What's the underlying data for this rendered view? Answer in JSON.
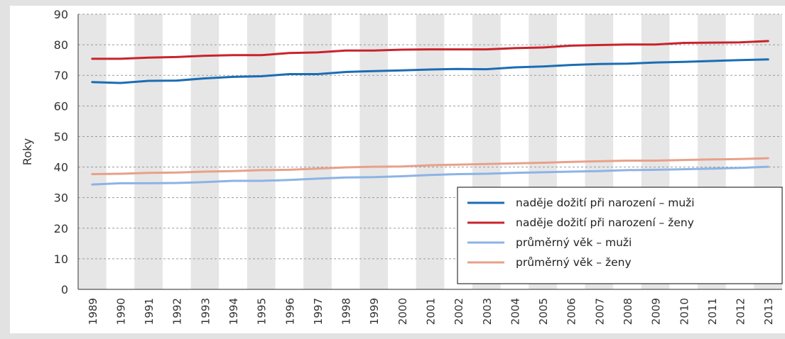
{
  "chart_data": {
    "type": "line",
    "title": "",
    "xlabel": "",
    "ylabel": "Roky",
    "ylim": [
      0,
      90
    ],
    "yticks": [
      0,
      10,
      20,
      30,
      40,
      50,
      60,
      70,
      80,
      90
    ],
    "grid": true,
    "legend_position": "bottom-right",
    "categories": [
      "1989",
      "1990",
      "1991",
      "1992",
      "1993",
      "1994",
      "1995",
      "1996",
      "1997",
      "1998",
      "1999",
      "2000",
      "2001",
      "2002",
      "2003",
      "2004",
      "2005",
      "2006",
      "2007",
      "2008",
      "2009",
      "2010",
      "2011",
      "2012",
      "2013"
    ],
    "series": [
      {
        "name": "naděje dožití při narození – muži",
        "color": "#1a6db4",
        "values": [
          67.8,
          67.5,
          68.2,
          68.3,
          69.0,
          69.5,
          69.7,
          70.4,
          70.4,
          71.1,
          71.4,
          71.6,
          71.9,
          72.1,
          72.0,
          72.6,
          72.9,
          73.4,
          73.7,
          73.8,
          74.2,
          74.4,
          74.7,
          75.0,
          75.2
        ]
      },
      {
        "name": "naděje dožití při narození – ženy",
        "color": "#c8232c",
        "values": [
          75.4,
          75.4,
          75.8,
          76.0,
          76.4,
          76.6,
          76.6,
          77.3,
          77.5,
          78.1,
          78.1,
          78.4,
          78.5,
          78.5,
          78.5,
          78.9,
          79.1,
          79.7,
          79.9,
          80.1,
          80.1,
          80.6,
          80.7,
          80.8,
          81.2
        ]
      },
      {
        "name": "průměrný věk – muži",
        "color": "#8cb3e6",
        "values": [
          34.3,
          34.7,
          34.7,
          34.8,
          35.1,
          35.5,
          35.5,
          35.8,
          36.2,
          36.6,
          36.7,
          37.0,
          37.4,
          37.7,
          37.8,
          38.1,
          38.3,
          38.5,
          38.7,
          39.0,
          39.1,
          39.3,
          39.5,
          39.7,
          40.1
        ]
      },
      {
        "name": "průměrný věk – ženy",
        "color": "#e8a08a",
        "values": [
          37.7,
          37.8,
          38.1,
          38.2,
          38.5,
          38.7,
          39.0,
          39.1,
          39.5,
          39.9,
          40.1,
          40.2,
          40.6,
          40.8,
          41.0,
          41.2,
          41.4,
          41.7,
          41.9,
          42.1,
          42.1,
          42.3,
          42.5,
          42.6,
          42.9
        ]
      }
    ]
  }
}
